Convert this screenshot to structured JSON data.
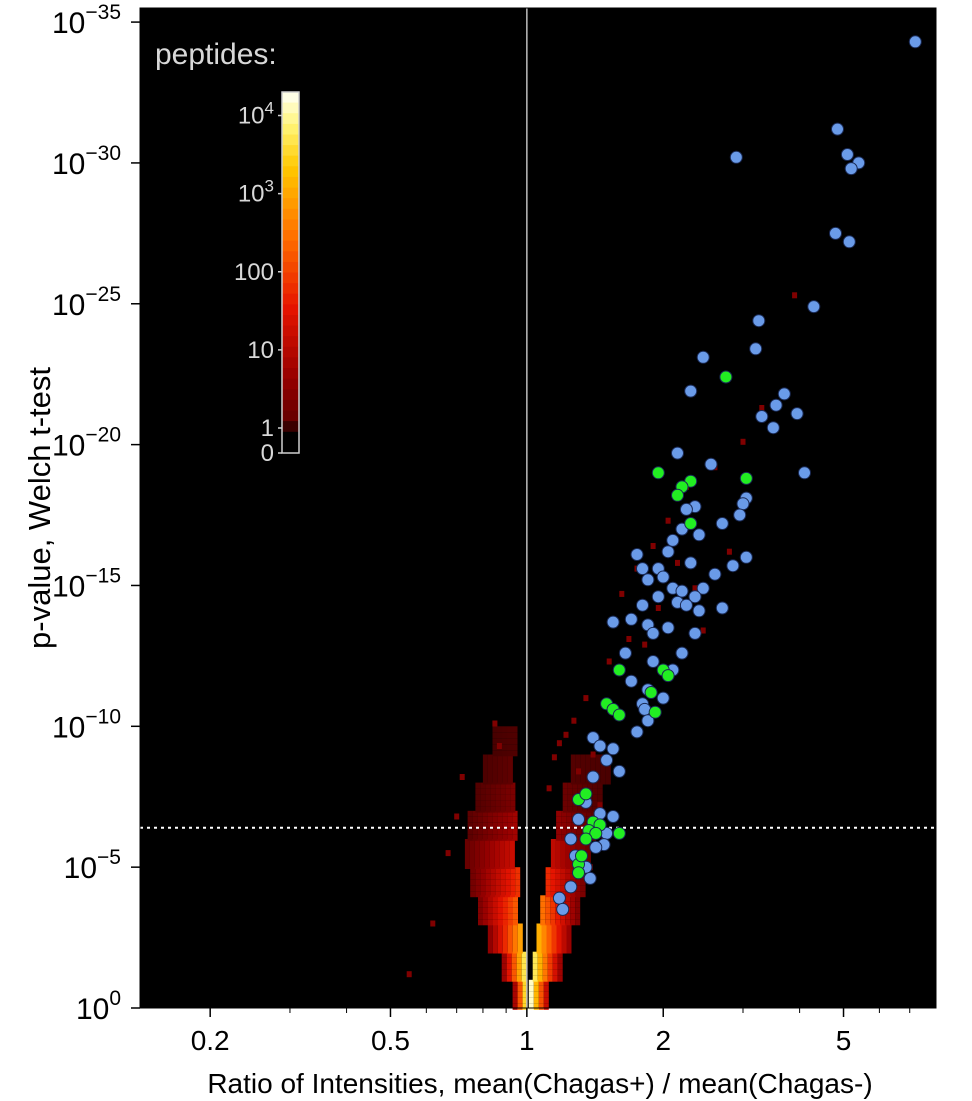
{
  "chart_data": {
    "type": "scatter",
    "title": "",
    "xlabel": "Ratio of Intensities, mean(Chagas+) / mean(Chagas-)",
    "ylabel": "p-value, Welch t-test",
    "x_scale": "log",
    "y_scale": "log (reversed; -log10 p increases upward)",
    "xlim": [
      0.14,
      8.0
    ],
    "ylim_neg_log10_p": [
      0,
      35.5
    ],
    "x_ticks": [
      {
        "value": 0.2,
        "label": "0.2"
      },
      {
        "value": 0.5,
        "label": "0.5"
      },
      {
        "value": 1,
        "label": "1"
      },
      {
        "value": 2,
        "label": "2"
      },
      {
        "value": 5,
        "label": "5"
      }
    ],
    "y_ticks": [
      {
        "exp": 0,
        "base": "10",
        "sup": "0"
      },
      {
        "exp": 5,
        "base": "10",
        "sup": "−5"
      },
      {
        "exp": 10,
        "base": "10",
        "sup": "−10"
      },
      {
        "exp": 15,
        "base": "10",
        "sup": "−15"
      },
      {
        "exp": 20,
        "base": "10",
        "sup": "−20"
      },
      {
        "exp": 25,
        "base": "10",
        "sup": "−25"
      },
      {
        "exp": 30,
        "base": "10",
        "sup": "−30"
      },
      {
        "exp": 35,
        "base": "10",
        "sup": "−35"
      }
    ],
    "reference_lines": {
      "vertical_x": 1,
      "horizontal_neg_log10_p": 6.4
    },
    "colorbar": {
      "title": "peptides:",
      "labels": [
        {
          "value": 0,
          "label": "0"
        },
        {
          "value": 1,
          "label": "1"
        },
        {
          "value": 10,
          "label": "10"
        },
        {
          "value": 100,
          "label": "100"
        },
        {
          "value": 1000,
          "base": "10",
          "sup": "3"
        },
        {
          "value": 10000,
          "base": "10",
          "sup": "4"
        }
      ],
      "max": 20000,
      "colors": [
        "#000000",
        "#3a0000",
        "#800000",
        "#c00000",
        "#ff2000",
        "#ff7000",
        "#ffb000",
        "#ffe000",
        "#ffff60",
        "#ffffe0",
        "#ffffff"
      ]
    },
    "density_background": {
      "description": "2D histogram of peptide counts",
      "left_arm": [
        {
          "y": 0.5,
          "x_lo": 0.93,
          "x_hi": 0.99,
          "density": 4.2
        },
        {
          "y": 1.5,
          "x_lo": 0.88,
          "x_hi": 0.975,
          "density": 3.8
        },
        {
          "y": 2.5,
          "x_lo": 0.82,
          "x_hi": 0.965,
          "density": 3.2
        },
        {
          "y": 3.5,
          "x_lo": 0.78,
          "x_hi": 0.955,
          "density": 2.6
        },
        {
          "y": 4.5,
          "x_lo": 0.75,
          "x_hi": 0.945,
          "density": 2.0
        },
        {
          "y": 5.5,
          "x_lo": 0.73,
          "x_hi": 0.94,
          "density": 1.5
        },
        {
          "y": 6.5,
          "x_lo": 0.74,
          "x_hi": 0.935,
          "density": 1.0
        },
        {
          "y": 7.5,
          "x_lo": 0.77,
          "x_hi": 0.93,
          "density": 0.6
        },
        {
          "y": 8.5,
          "x_lo": 0.8,
          "x_hi": 0.93,
          "density": 0.3
        },
        {
          "y": 9.5,
          "x_lo": 0.84,
          "x_hi": 0.93,
          "density": 0.1
        }
      ],
      "right_arm": [
        {
          "y": 0.5,
          "x_lo": 1.01,
          "x_hi": 1.1,
          "density": 4.2
        },
        {
          "y": 1.5,
          "x_lo": 1.03,
          "x_hi": 1.17,
          "density": 3.8
        },
        {
          "y": 2.5,
          "x_lo": 1.05,
          "x_hi": 1.23,
          "density": 3.2
        },
        {
          "y": 3.5,
          "x_lo": 1.07,
          "x_hi": 1.28,
          "density": 2.6
        },
        {
          "y": 4.5,
          "x_lo": 1.1,
          "x_hi": 1.33,
          "density": 1.9
        },
        {
          "y": 5.5,
          "x_lo": 1.13,
          "x_hi": 1.37,
          "density": 1.3
        },
        {
          "y": 6.5,
          "x_lo": 1.16,
          "x_hi": 1.42,
          "density": 0.8
        },
        {
          "y": 7.5,
          "x_lo": 1.2,
          "x_hi": 1.45,
          "density": 0.4
        },
        {
          "y": 8.5,
          "x_lo": 1.25,
          "x_hi": 1.5,
          "density": 0.15
        }
      ],
      "sparse_cells": [
        [
          0.62,
          3.0
        ],
        [
          0.67,
          5.5
        ],
        [
          0.7,
          6.8
        ],
        [
          0.72,
          8.2
        ],
        [
          0.85,
          10.1
        ],
        [
          0.87,
          9.3
        ],
        [
          1.12,
          7.8
        ],
        [
          1.15,
          8.9
        ],
        [
          1.18,
          9.4
        ],
        [
          1.22,
          9.7
        ],
        [
          1.27,
          10.2
        ],
        [
          1.3,
          8.4
        ],
        [
          1.35,
          11.0
        ],
        [
          1.4,
          9.0
        ],
        [
          1.45,
          7.2
        ],
        [
          1.52,
          12.3
        ],
        [
          1.58,
          10.5
        ],
        [
          1.62,
          14.7
        ],
        [
          1.68,
          13.1
        ],
        [
          1.75,
          15.6
        ],
        [
          1.82,
          12.9
        ],
        [
          1.9,
          16.4
        ],
        [
          1.95,
          14.2
        ],
        [
          2.05,
          17.3
        ],
        [
          2.15,
          15.8
        ],
        [
          2.25,
          18.5
        ],
        [
          2.35,
          14.9
        ],
        [
          2.45,
          13.4
        ],
        [
          2.6,
          19.2
        ],
        [
          2.8,
          16.2
        ],
        [
          3.0,
          20.1
        ],
        [
          3.3,
          21.3
        ],
        [
          3.9,
          25.3
        ],
        [
          1.48,
          6.0
        ],
        [
          1.38,
          5.0
        ],
        [
          0.55,
          1.2
        ]
      ]
    },
    "series": [
      {
        "name": "",
        "color": "#6a9be8",
        "points": [
          [
            7.2,
            34.3
          ],
          [
            4.85,
            31.2
          ],
          [
            5.1,
            30.3
          ],
          [
            5.4,
            30.0
          ],
          [
            5.2,
            29.8
          ],
          [
            2.9,
            30.2
          ],
          [
            4.8,
            27.5
          ],
          [
            5.15,
            27.2
          ],
          [
            4.3,
            24.9
          ],
          [
            3.25,
            24.4
          ],
          [
            3.2,
            23.4
          ],
          [
            2.45,
            23.1
          ],
          [
            2.3,
            21.9
          ],
          [
            3.7,
            21.8
          ],
          [
            3.55,
            21.4
          ],
          [
            3.95,
            21.1
          ],
          [
            3.3,
            21.0
          ],
          [
            3.5,
            20.6
          ],
          [
            4.1,
            19.0
          ],
          [
            2.15,
            19.7
          ],
          [
            2.55,
            19.3
          ],
          [
            3.05,
            18.1
          ],
          [
            2.35,
            17.8
          ],
          [
            3.0,
            17.9
          ],
          [
            2.25,
            17.7
          ],
          [
            2.95,
            17.5
          ],
          [
            2.2,
            17.0
          ],
          [
            2.7,
            17.2
          ],
          [
            2.1,
            16.6
          ],
          [
            2.4,
            16.8
          ],
          [
            2.05,
            16.2
          ],
          [
            1.95,
            15.6
          ],
          [
            2.3,
            15.8
          ],
          [
            2.85,
            15.7
          ],
          [
            3.05,
            16.0
          ],
          [
            2.6,
            15.4
          ],
          [
            1.75,
            16.1
          ],
          [
            1.8,
            15.6
          ],
          [
            1.85,
            15.2
          ],
          [
            2.0,
            15.3
          ],
          [
            2.1,
            14.9
          ],
          [
            2.2,
            14.8
          ],
          [
            2.45,
            14.9
          ],
          [
            1.95,
            14.6
          ],
          [
            2.15,
            14.4
          ],
          [
            2.35,
            14.6
          ],
          [
            2.25,
            14.3
          ],
          [
            2.7,
            14.2
          ],
          [
            1.8,
            14.3
          ],
          [
            2.4,
            14.1
          ],
          [
            1.55,
            13.7
          ],
          [
            1.7,
            13.8
          ],
          [
            1.85,
            13.6
          ],
          [
            2.05,
            13.5
          ],
          [
            1.9,
            13.3
          ],
          [
            2.35,
            13.3
          ],
          [
            1.65,
            12.6
          ],
          [
            2.2,
            12.6
          ],
          [
            1.9,
            12.3
          ],
          [
            2.1,
            12.0
          ],
          [
            1.7,
            11.6
          ],
          [
            1.85,
            11.3
          ],
          [
            2.0,
            11.0
          ],
          [
            1.8,
            10.8
          ],
          [
            1.82,
            10.6
          ],
          [
            1.85,
            10.2
          ],
          [
            1.75,
            9.8
          ],
          [
            1.4,
            9.6
          ],
          [
            1.45,
            9.3
          ],
          [
            1.55,
            9.2
          ],
          [
            1.5,
            8.8
          ],
          [
            1.6,
            8.4
          ],
          [
            1.4,
            8.2
          ],
          [
            1.35,
            7.3
          ],
          [
            1.45,
            6.9
          ],
          [
            1.3,
            6.7
          ],
          [
            1.55,
            6.8
          ],
          [
            1.4,
            6.4
          ],
          [
            1.5,
            6.2
          ],
          [
            1.25,
            6.0
          ],
          [
            1.48,
            5.8
          ],
          [
            1.28,
            5.4
          ],
          [
            1.42,
            5.7
          ],
          [
            1.35,
            5.0
          ],
          [
            1.3,
            4.8
          ],
          [
            1.25,
            4.3
          ],
          [
            1.38,
            4.6
          ],
          [
            1.18,
            3.9
          ],
          [
            1.2,
            3.5
          ]
        ]
      },
      {
        "name": "",
        "color": "#22ee22",
        "points": [
          [
            2.75,
            22.4
          ],
          [
            1.95,
            19.0
          ],
          [
            2.3,
            18.7
          ],
          [
            3.05,
            18.8
          ],
          [
            2.2,
            18.5
          ],
          [
            2.15,
            18.2
          ],
          [
            2.3,
            17.2
          ],
          [
            1.6,
            12.0
          ],
          [
            2.0,
            12.0
          ],
          [
            2.05,
            11.8
          ],
          [
            1.88,
            11.2
          ],
          [
            1.5,
            10.8
          ],
          [
            1.55,
            10.6
          ],
          [
            1.6,
            10.4
          ],
          [
            1.92,
            10.5
          ],
          [
            1.3,
            7.4
          ],
          [
            1.35,
            7.6
          ],
          [
            1.4,
            6.6
          ],
          [
            1.45,
            6.5
          ],
          [
            1.37,
            6.3
          ],
          [
            1.42,
            6.2
          ],
          [
            1.35,
            6.0
          ],
          [
            1.6,
            6.2
          ],
          [
            1.3,
            5.1
          ],
          [
            1.32,
            5.4
          ],
          [
            1.3,
            4.8
          ]
        ]
      }
    ]
  }
}
